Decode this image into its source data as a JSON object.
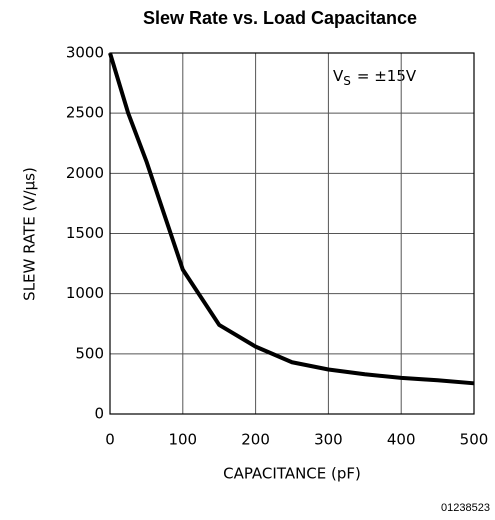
{
  "chart_data": {
    "type": "line",
    "title": "Slew Rate vs. Load Capacitance",
    "xlabel": "CAPACITANCE (pF)",
    "ylabel": "SLEW RATE (V/μs)",
    "annotation": [
      "V",
      "S",
      "= ±15V"
    ],
    "footnote": "01238523",
    "x": [
      0,
      25,
      50,
      75,
      100,
      150,
      200,
      250,
      300,
      350,
      400,
      450,
      500
    ],
    "series": [
      {
        "name": "Slew Rate",
        "color": "#000000",
        "values": [
          3000,
          2500,
          2100,
          1650,
          1200,
          740,
          560,
          430,
          370,
          330,
          300,
          280,
          255
        ]
      }
    ],
    "xlim": [
      0,
      500
    ],
    "xticks": [
      0,
      100,
      200,
      300,
      400,
      500
    ],
    "ylim": [
      0,
      3000
    ],
    "yticks": [
      0,
      500,
      1000,
      1500,
      2000,
      2500,
      3000
    ],
    "grid": true
  }
}
